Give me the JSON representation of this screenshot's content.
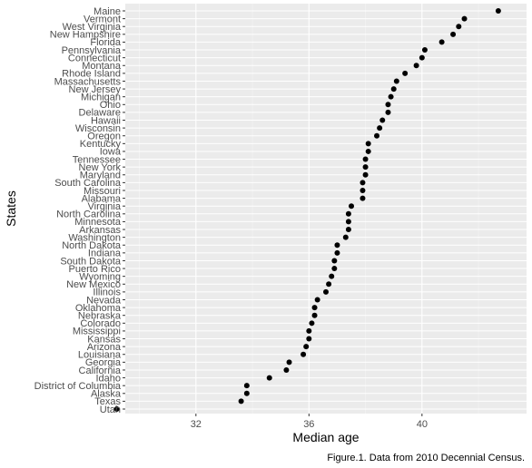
{
  "chart_data": {
    "type": "scatter",
    "title": "",
    "xlabel": "Median age",
    "ylabel": "States",
    "caption": "Figure.1. Data from 2010 Decennial Census.",
    "xlim": [
      29.5,
      43.7
    ],
    "xticks": [
      32,
      36,
      40
    ],
    "grid": true,
    "legend": "none",
    "colors": {
      "panel": "#ebebeb",
      "grid_major": "#ffffff",
      "grid_minor": "#f5f5f5",
      "point": "#000000",
      "tick_text": "#4d4d4d"
    },
    "categories": [
      "Maine",
      "Vermont",
      "West Virginia",
      "New Hampshire",
      "Florida",
      "Pennsylvania",
      "Connecticut",
      "Montana",
      "Rhode Island",
      "Massachusetts",
      "New Jersey",
      "Michigan",
      "Ohio",
      "Delaware",
      "Hawaii",
      "Wisconsin",
      "Oregon",
      "Kentucky",
      "Iowa",
      "Tennessee",
      "New York",
      "Maryland",
      "South Carolina",
      "Missouri",
      "Alabama",
      "Virginia",
      "North Carolina",
      "Minnesota",
      "Arkansas",
      "Washington",
      "North Dakota",
      "Indiana",
      "South Dakota",
      "Puerto Rico",
      "Wyoming",
      "New Mexico",
      "Illinois",
      "Nevada",
      "Oklahoma",
      "Nebraska",
      "Colorado",
      "Mississippi",
      "Kansas",
      "Arizona",
      "Louisiana",
      "Georgia",
      "California",
      "Idaho",
      "District of Columbia",
      "Alaska",
      "Texas",
      "Utah"
    ],
    "values": [
      42.7,
      41.5,
      41.3,
      41.1,
      40.7,
      40.1,
      40.0,
      39.8,
      39.4,
      39.1,
      39.0,
      38.9,
      38.8,
      38.8,
      38.6,
      38.5,
      38.4,
      38.1,
      38.1,
      38.0,
      38.0,
      38.0,
      37.9,
      37.9,
      37.9,
      37.5,
      37.4,
      37.4,
      37.4,
      37.3,
      37.0,
      37.0,
      36.9,
      36.9,
      36.8,
      36.7,
      36.6,
      36.3,
      36.2,
      36.2,
      36.1,
      36.0,
      36.0,
      35.9,
      35.8,
      35.3,
      35.2,
      34.6,
      33.8,
      33.8,
      33.6,
      29.2
    ]
  }
}
